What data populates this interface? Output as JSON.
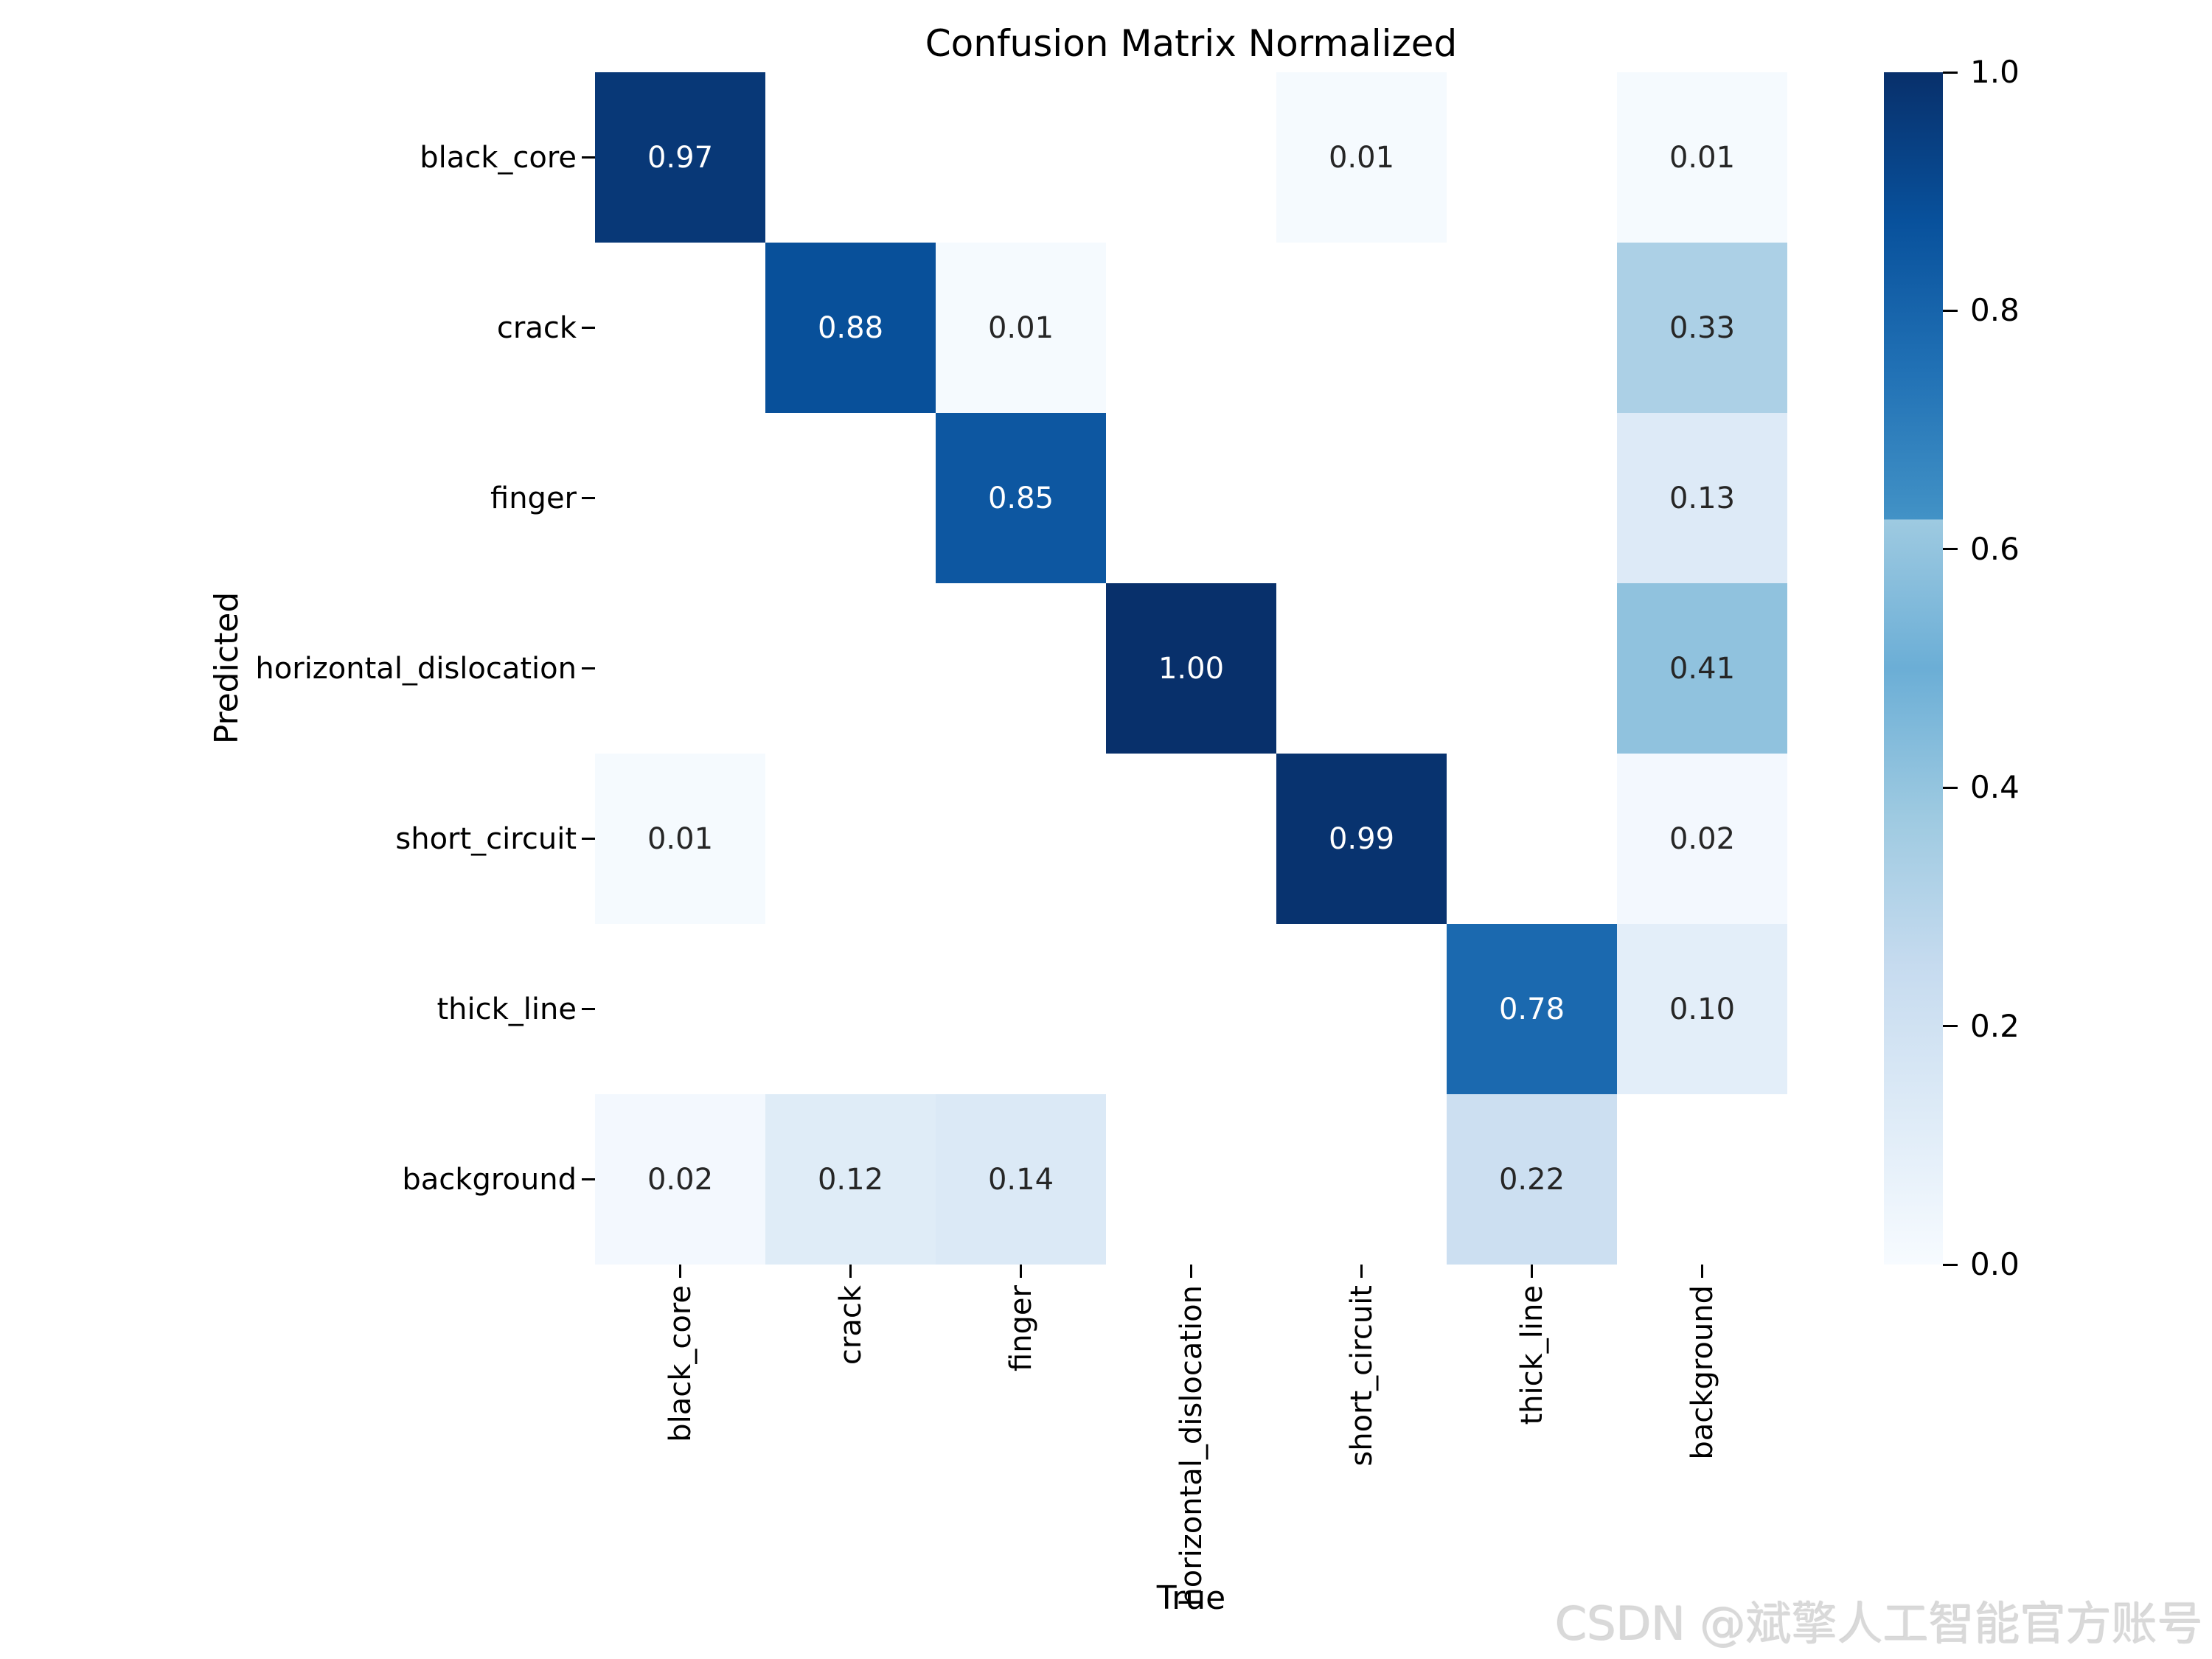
{
  "figure": {
    "watermark": "CSDN @斌擎人工智能官方账号"
  },
  "chart_data": {
    "type": "heatmap",
    "title": "Confusion Matrix Normalized",
    "xlabel": "True",
    "ylabel": "Predicted",
    "x_categories": [
      "black_core",
      "crack",
      "finger",
      "horizontal_dislocation",
      "short_circuit",
      "thick_line",
      "background"
    ],
    "y_categories": [
      "black_core",
      "crack",
      "finger",
      "horizontal_dislocation",
      "short_circuit",
      "thick_line",
      "background"
    ],
    "matrix": [
      [
        0.97,
        null,
        null,
        null,
        0.01,
        null,
        0.01
      ],
      [
        null,
        0.88,
        0.01,
        null,
        null,
        null,
        0.33
      ],
      [
        null,
        null,
        0.85,
        null,
        null,
        null,
        0.13
      ],
      [
        null,
        null,
        null,
        1.0,
        null,
        null,
        0.41
      ],
      [
        0.01,
        null,
        null,
        null,
        0.99,
        null,
        0.02
      ],
      [
        null,
        null,
        null,
        null,
        null,
        0.78,
        0.1
      ],
      [
        0.02,
        0.12,
        0.14,
        null,
        null,
        0.22,
        null
      ]
    ],
    "value_format_decimals": 2,
    "vmin": 0.0,
    "vmax": 1.0,
    "grid_on": false,
    "colormap": "Blues",
    "colormap_anchors": [
      {
        "pos": 0.0,
        "color": "#f7fbff"
      },
      {
        "pos": 0.125,
        "color": "#deebf7"
      },
      {
        "pos": 0.25,
        "color": "#c6dbef"
      },
      {
        "pos": 0.375,
        "color": "#9ecae1"
      },
      {
        "pos": 0.5,
        "color": "#6baed6"
      },
      {
        "pos": 0.625,
        "color": "#9ecae1"
      },
      {
        "pos": 0.625,
        "color": "#4292c6"
      },
      {
        "pos": 0.75,
        "color": "#2171b5"
      },
      {
        "pos": 0.875,
        "color": "#08519c"
      },
      {
        "pos": 1.0,
        "color": "#08306b"
      }
    ],
    "colorbar": {
      "position": "right",
      "tick_values": [
        1.0,
        0.8,
        0.6,
        0.4,
        0.2,
        0.0
      ],
      "tick_labels": [
        "1.0",
        "0.8",
        "0.6",
        "0.4",
        "0.2",
        "0.0"
      ]
    },
    "annotation_colors": {
      "dark_cell_text": "#ffffff",
      "light_cell_text": "#262626",
      "white_text_threshold": 0.7
    },
    "empty_cell_color": "#ffffff",
    "tick_color": "#000000",
    "text_color": "#000000"
  }
}
